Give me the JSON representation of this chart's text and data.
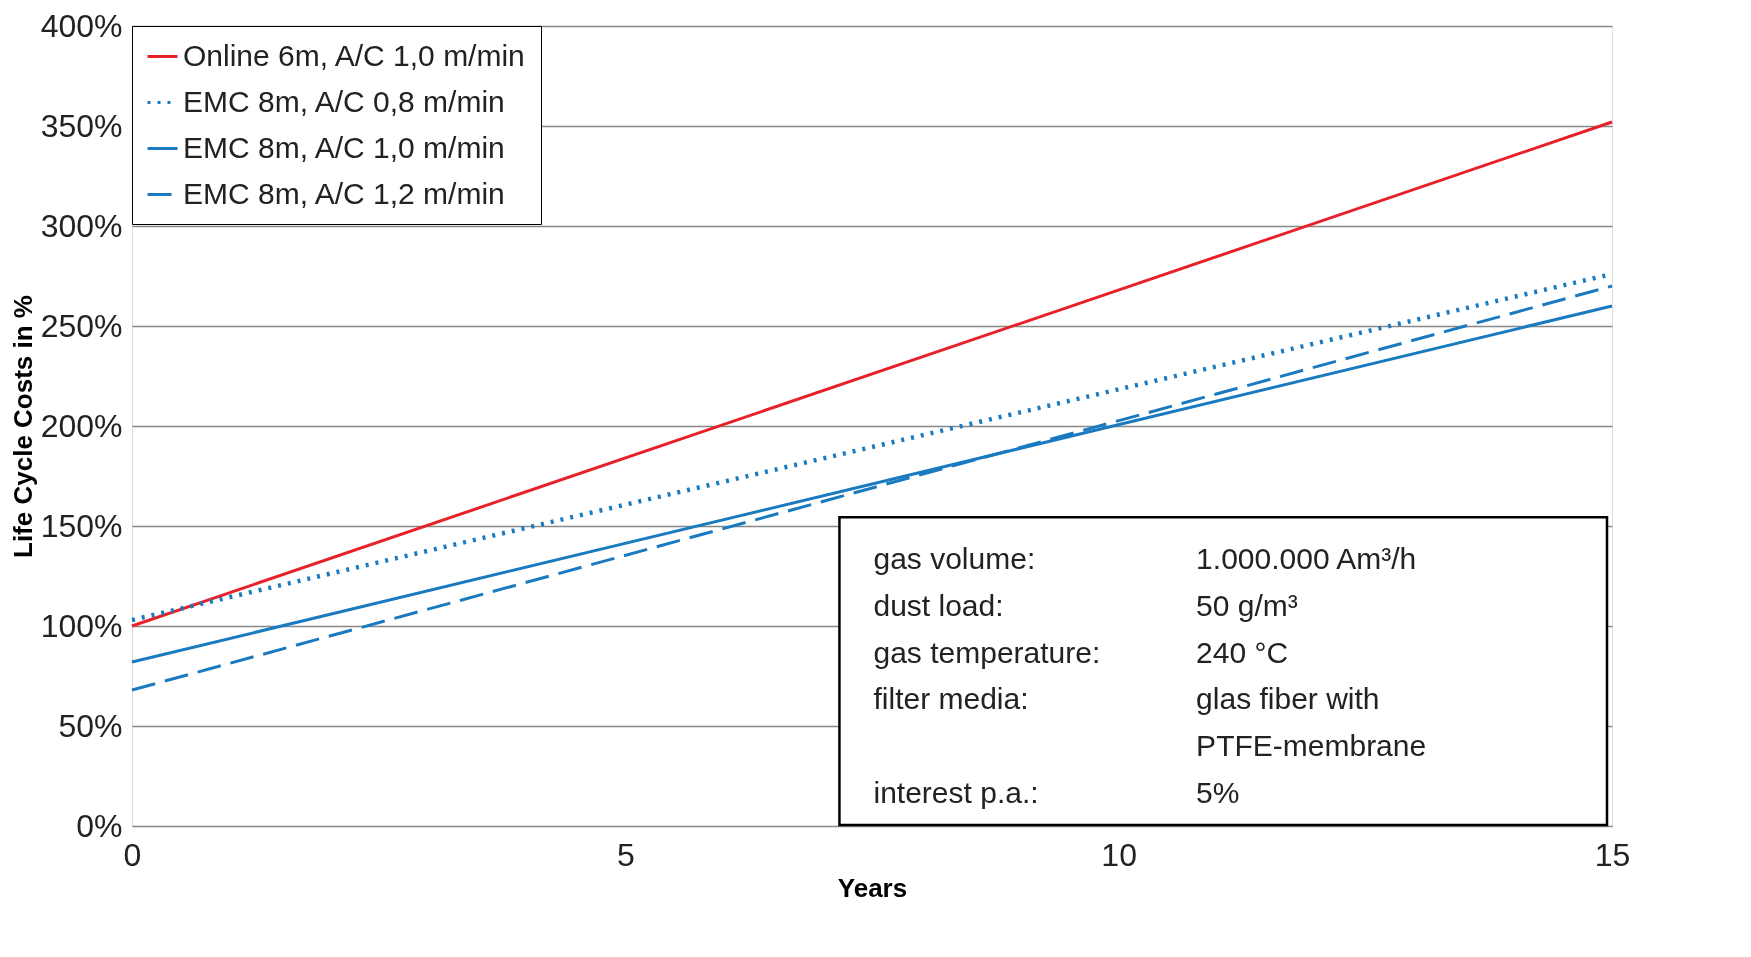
{
  "chart_data": {
    "type": "line",
    "xlabel": "Years",
    "ylabel": "Life Cycle Costs  in %",
    "x": [
      0,
      15
    ],
    "series": [
      {
        "name": "Online 6m, A/C 1,0 m/min",
        "color": "#e8202a",
        "line_style": "solid",
        "values": [
          100,
          352
        ]
      },
      {
        "name": "EMC 8m, A/C 0,8 m/min",
        "color": "#1a7ac0",
        "line_style": "dotted",
        "values": [
          103,
          276
        ]
      },
      {
        "name": "EMC 8m, A/C 1,0 m/min",
        "color": "#1a7ac0",
        "line_style": "solid",
        "values": [
          82,
          260
        ]
      },
      {
        "name": "EMC 8m, A/C 1,2 m/min",
        "color": "#1a7ac0",
        "line_style": "dashed",
        "values": [
          68,
          270
        ]
      }
    ],
    "xlim": [
      0,
      15
    ],
    "xticks": [
      0,
      5,
      10,
      15
    ],
    "ylim": [
      0,
      400
    ],
    "yticks": [
      {
        "value": 0,
        "label": "0%"
      },
      {
        "value": 50,
        "label": "50%"
      },
      {
        "value": 100,
        "label": "100%"
      },
      {
        "value": 150,
        "label": "150%"
      },
      {
        "value": 200,
        "label": "200%"
      },
      {
        "value": 250,
        "label": "250%"
      },
      {
        "value": 300,
        "label": "300%"
      },
      {
        "value": 350,
        "label": "350%"
      },
      {
        "value": 400,
        "label": "400%"
      }
    ],
    "grid": "y",
    "legend": "top left",
    "marker": "none",
    "annotations": [
      "gas volume:",
      "1.000.000 Am³/h",
      "dust load:",
      "50 g/m³",
      "gas temperature:",
      "240 °C",
      "filter media:",
      "glas fiber with\nPTFE-membrane",
      "interest p.a.:",
      "5%"
    ]
  }
}
